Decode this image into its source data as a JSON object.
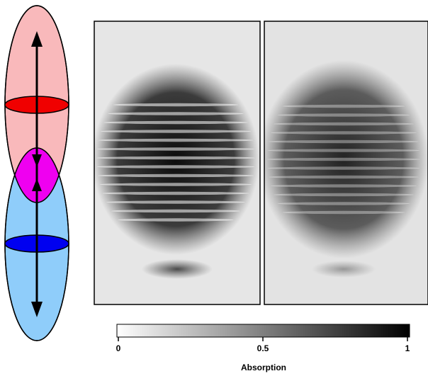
{
  "colorbar": {
    "label": "Absorption",
    "lim": [
      0,
      1
    ],
    "ticks": [
      0,
      0.5,
      1
    ]
  }
}
